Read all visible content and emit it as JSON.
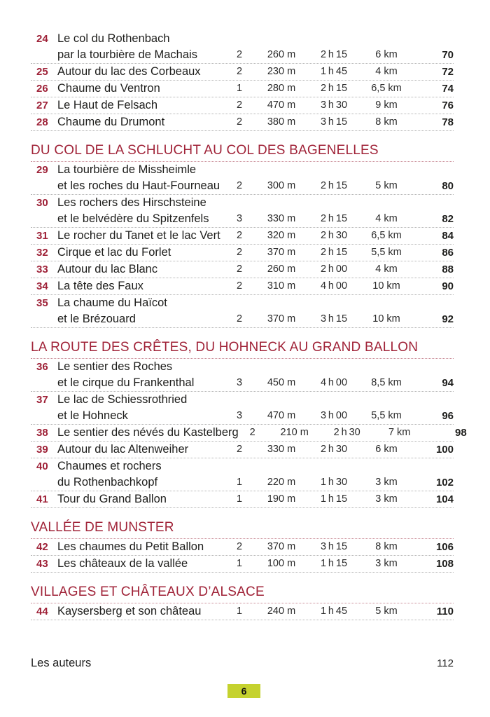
{
  "page": {
    "accent_color": "#a02338",
    "badge": {
      "label": "6",
      "color": "#c5d22f"
    }
  },
  "toc": {
    "sections": [
      {
        "title": "",
        "entries": [
          {
            "num": "24",
            "title_lines": [
              "Le col du Rothenbach",
              "par la tourbière de Machais"
            ],
            "difficulty": "2",
            "elevation": "260 m",
            "time": "2 h 15",
            "distance": "6 km",
            "page": "70"
          },
          {
            "num": "25",
            "title_lines": [
              "Autour du lac des Corbeaux"
            ],
            "difficulty": "2",
            "elevation": "230 m",
            "time": "1 h 45",
            "distance": "4 km",
            "page": "72"
          },
          {
            "num": "26",
            "title_lines": [
              "Chaume du Ventron"
            ],
            "difficulty": "1",
            "elevation": "280 m",
            "time": "2 h 15",
            "distance": "6,5 km",
            "page": "74"
          },
          {
            "num": "27",
            "title_lines": [
              "Le Haut de Felsach"
            ],
            "difficulty": "2",
            "elevation": "470 m",
            "time": "3 h 30",
            "distance": "9 km",
            "page": "76"
          },
          {
            "num": "28",
            "title_lines": [
              "Chaume du Drumont"
            ],
            "difficulty": "2",
            "elevation": "380 m",
            "time": "3 h 15",
            "distance": "8 km",
            "page": "78"
          }
        ]
      },
      {
        "title": "DU COL DE LA SCHLUCHT AU COL DES BAGENELLES",
        "entries": [
          {
            "num": "29",
            "title_lines": [
              "La tourbière de Missheimle",
              "et les roches du Haut-Fourneau"
            ],
            "difficulty": "2",
            "elevation": "300 m",
            "time": "2 h 15",
            "distance": "5 km",
            "page": "80"
          },
          {
            "num": "30",
            "title_lines": [
              "Les rochers des Hirschsteine",
              "et le belvédère du Spitzenfels"
            ],
            "difficulty": "3",
            "elevation": "330 m",
            "time": "2 h 15",
            "distance": "4 km",
            "page": "82"
          },
          {
            "num": "31",
            "title_lines": [
              "Le rocher du Tanet et le lac Vert"
            ],
            "difficulty": "2",
            "elevation": "320 m",
            "time": "2 h 30",
            "distance": "6,5 km",
            "page": "84"
          },
          {
            "num": "32",
            "title_lines": [
              "Cirque et lac du Forlet"
            ],
            "difficulty": "2",
            "elevation": "370 m",
            "time": "2 h 15",
            "distance": "5,5 km",
            "page": "86"
          },
          {
            "num": "33",
            "title_lines": [
              "Autour du lac Blanc"
            ],
            "difficulty": "2",
            "elevation": "260 m",
            "time": "2 h 00",
            "distance": "4 km",
            "page": "88"
          },
          {
            "num": "34",
            "title_lines": [
              "La tête des Faux"
            ],
            "difficulty": "2",
            "elevation": "310 m",
            "time": "4 h 00",
            "distance": "10 km",
            "page": "90"
          },
          {
            "num": "35",
            "title_lines": [
              "La chaume du Haïcot",
              "et le Brézouard"
            ],
            "difficulty": "2",
            "elevation": "370 m",
            "time": "3 h 15",
            "distance": "10 km",
            "page": "92"
          }
        ]
      },
      {
        "title": "LA ROUTE DES CRÊTES, DU HOHNECK AU GRAND BALLON",
        "entries": [
          {
            "num": "36",
            "title_lines": [
              "Le sentier des Roches",
              "et le cirque du Frankenthal"
            ],
            "difficulty": "3",
            "elevation": "450 m",
            "time": "4 h 00",
            "distance": "8,5 km",
            "page": "94"
          },
          {
            "num": "37",
            "title_lines": [
              "Le lac de Schiessrothried",
              "et le Hohneck"
            ],
            "difficulty": "3",
            "elevation": "470 m",
            "time": "3 h 00",
            "distance": "5,5 km",
            "page": "96"
          },
          {
            "num": "38",
            "title_lines": [
              "Le sentier des névés du Kastelberg"
            ],
            "difficulty": "2",
            "elevation": "210 m",
            "time": "2 h 30",
            "distance": "7 km",
            "page": "98"
          },
          {
            "num": "39",
            "title_lines": [
              "Autour du lac Altenweiher"
            ],
            "difficulty": "2",
            "elevation": "330 m",
            "time": "2 h 30",
            "distance": "6 km",
            "page": "100"
          },
          {
            "num": "40",
            "title_lines": [
              "Chaumes et rochers",
              "du Rothenbachkopf"
            ],
            "difficulty": "1",
            "elevation": "220 m",
            "time": "1 h 30",
            "distance": "3 km",
            "page": "102"
          },
          {
            "num": "41",
            "title_lines": [
              "Tour du Grand Ballon"
            ],
            "difficulty": "1",
            "elevation": "190 m",
            "time": "1 h 15",
            "distance": "3 km",
            "page": "104"
          }
        ]
      },
      {
        "title": "VALLÉE DE MUNSTER",
        "entries": [
          {
            "num": "42",
            "title_lines": [
              "Les chaumes du Petit Ballon"
            ],
            "difficulty": "2",
            "elevation": "370 m",
            "time": "3 h 15",
            "distance": "8 km",
            "page": "106"
          },
          {
            "num": "43",
            "title_lines": [
              "Les châteaux de la vallée"
            ],
            "difficulty": "1",
            "elevation": "100 m",
            "time": "1 h 15",
            "distance": "3 km",
            "page": "108"
          }
        ]
      },
      {
        "title": "VILLAGES ET CHÂTEAUX D’ALSACE",
        "entries": [
          {
            "num": "44",
            "title_lines": [
              "Kaysersberg et son château"
            ],
            "difficulty": "1",
            "elevation": "240 m",
            "time": "1 h 45",
            "distance": "5 km",
            "page": "110"
          }
        ]
      }
    ],
    "footer": {
      "label": "Les auteurs",
      "page": "112"
    }
  }
}
